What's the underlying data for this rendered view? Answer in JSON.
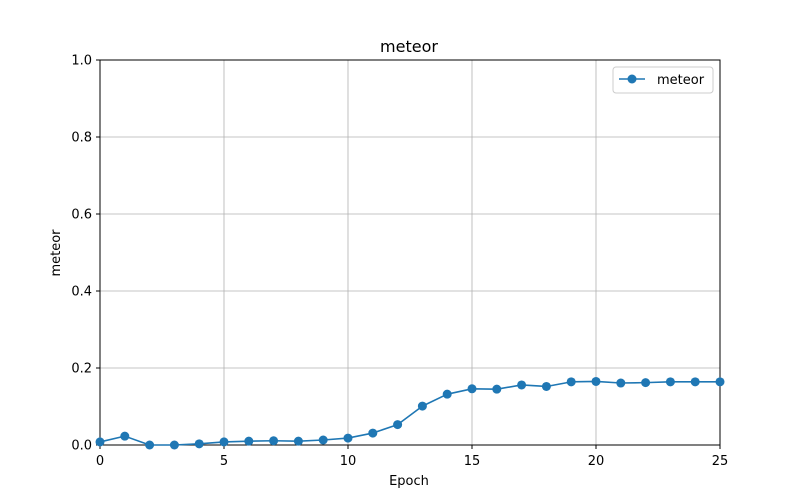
{
  "chart_data": {
    "type": "line",
    "title": "meteor",
    "xlabel": "Epoch",
    "ylabel": "meteor",
    "xlim": [
      0,
      25
    ],
    "ylim": [
      0,
      1.0
    ],
    "xticks": [
      "0",
      "5",
      "10",
      "15",
      "20",
      "25"
    ],
    "yticks": [
      "0.0",
      "0.2",
      "0.4",
      "0.6",
      "0.8",
      "1.0"
    ],
    "grid": true,
    "legend_position": "top-right",
    "color": "#1f77b4",
    "series": [
      {
        "name": "meteor",
        "marker": "circle",
        "x": [
          0,
          1,
          2,
          3,
          4,
          5,
          6,
          7,
          8,
          9,
          10,
          11,
          12,
          13,
          14,
          15,
          16,
          17,
          18,
          19,
          20,
          21,
          22,
          23,
          24,
          25
        ],
        "y": [
          0.008,
          0.023,
          0.0,
          0.0,
          0.003,
          0.008,
          0.01,
          0.011,
          0.01,
          0.013,
          0.018,
          0.031,
          0.053,
          0.101,
          0.132,
          0.146,
          0.145,
          0.156,
          0.152,
          0.164,
          0.165,
          0.161,
          0.162,
          0.164,
          0.164,
          0.164
        ]
      }
    ]
  }
}
